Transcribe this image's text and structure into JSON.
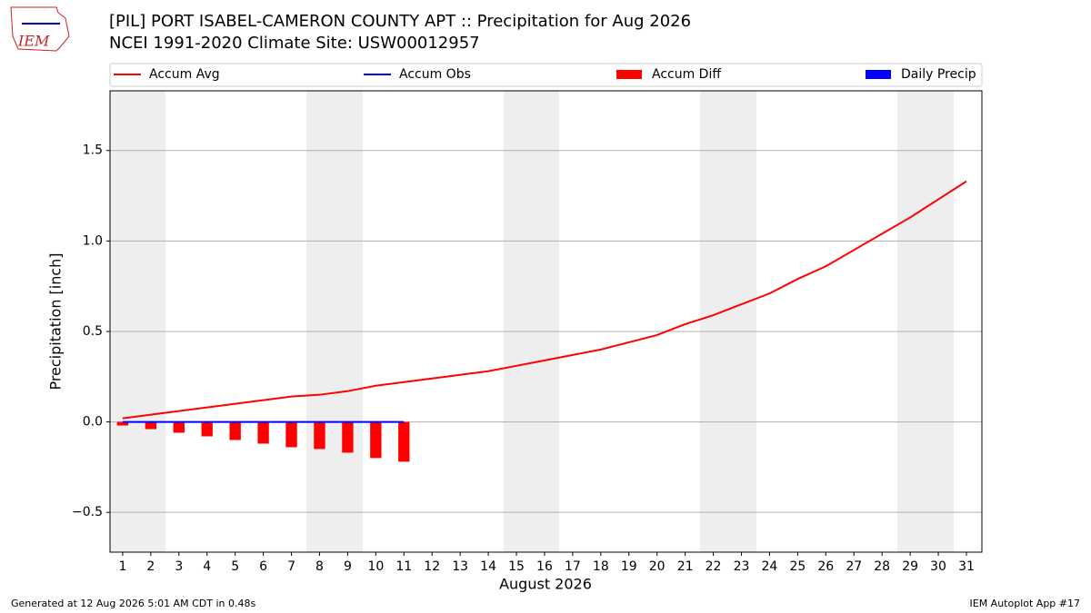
{
  "chart_data": {
    "type": "combo",
    "logo_text": "IEM",
    "title": "[PIL] PORT ISABEL-CAMERON COUNTY APT :: Precipitation for Aug 2026",
    "subtitle": "NCEI 1991-2020 Climate Site: USW00012957",
    "x_label": "August 2026",
    "y_label": "Precipitation [inch]",
    "footer_left": "Generated at 12 Aug 2026 5:01 AM CDT in 0.48s",
    "footer_right": "IEM Autoplot App #17",
    "x": [
      1,
      2,
      3,
      4,
      5,
      6,
      7,
      8,
      9,
      10,
      11,
      12,
      13,
      14,
      15,
      16,
      17,
      18,
      19,
      20,
      21,
      22,
      23,
      24,
      25,
      26,
      27,
      28,
      29,
      30,
      31
    ],
    "xlim": [
      0.55,
      31.55
    ],
    "xticks": [
      1,
      2,
      3,
      4,
      5,
      6,
      7,
      8,
      9,
      10,
      11,
      12,
      13,
      14,
      15,
      16,
      17,
      18,
      19,
      20,
      21,
      22,
      23,
      24,
      25,
      26,
      27,
      28,
      29,
      30,
      31
    ],
    "ylim": [
      -0.72,
      1.83
    ],
    "yticks": [
      {
        "value": -0.5,
        "label": "−0.5"
      },
      {
        "value": 0,
        "label": "0.0"
      },
      0.5,
      {
        "value": 1,
        "label": "1.0"
      },
      1.5
    ],
    "grid": true,
    "series": [
      {
        "name": "Accum Avg",
        "type": "line",
        "color": "#ff0000",
        "values": [
          0.02,
          0.04,
          0.06,
          0.08,
          0.1,
          0.12,
          0.14,
          0.15,
          0.17,
          0.2,
          0.22,
          0.24,
          0.26,
          0.28,
          0.31,
          0.34,
          0.37,
          0.4,
          0.44,
          0.48,
          0.54,
          0.59,
          0.65,
          0.71,
          0.79,
          0.86,
          0.95,
          1.04,
          1.13,
          1.23,
          1.33
        ]
      },
      {
        "name": "Accum Obs",
        "type": "line",
        "color": "#0000ff",
        "values": [
          0,
          0,
          0,
          0,
          0,
          0,
          0,
          0,
          0,
          0,
          0,
          null,
          null,
          null,
          null,
          null,
          null,
          null,
          null,
          null,
          null,
          null,
          null,
          null,
          null,
          null,
          null,
          null,
          null,
          null,
          null
        ]
      },
      {
        "name": "Accum Diff",
        "type": "bar",
        "color": "#ff0000",
        "values": [
          -0.02,
          -0.04,
          -0.06,
          -0.08,
          -0.1,
          -0.12,
          -0.14,
          -0.15,
          -0.17,
          -0.2,
          -0.22,
          null,
          null,
          null,
          null,
          null,
          null,
          null,
          null,
          null,
          null,
          null,
          null,
          null,
          null,
          null,
          null,
          null,
          null,
          null,
          null
        ]
      },
      {
        "name": "Daily Precip",
        "type": "bar",
        "color": "#0000ff",
        "values": [
          0,
          0,
          0,
          0,
          0,
          0,
          0,
          0,
          0,
          0,
          0,
          null,
          null,
          null,
          null,
          null,
          null,
          null,
          null,
          null,
          null,
          null,
          null,
          null,
          null,
          null,
          null,
          null,
          null,
          null,
          null
        ]
      }
    ]
  }
}
